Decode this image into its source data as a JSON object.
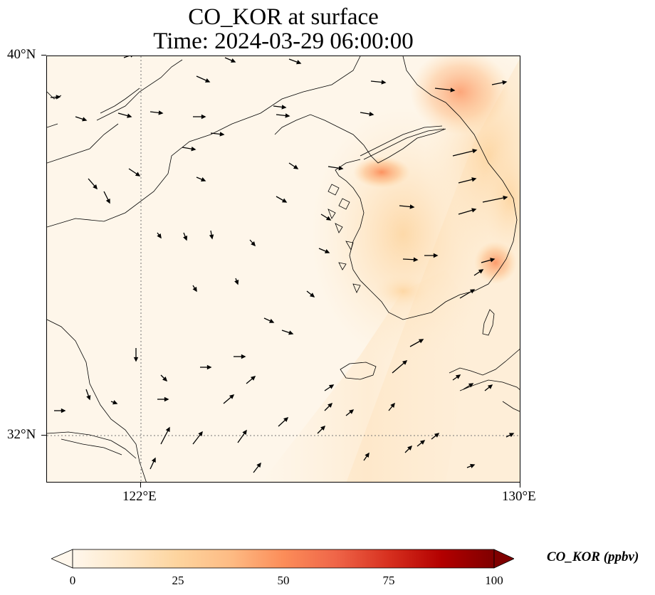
{
  "title": {
    "line1": "CO_KOR at surface",
    "line2": "Time: 2024-03-29 06:00:00"
  },
  "axes": {
    "lat_labels": [
      "40°N",
      "32°N"
    ],
    "lon_labels": [
      "122°E",
      "130°E"
    ],
    "lon_range": [
      120,
      130
    ],
    "lat_range": [
      31,
      40
    ]
  },
  "colorbar": {
    "label": "CO_KOR (ppbv)",
    "ticks": [
      "0",
      "25",
      "50",
      "75",
      "100"
    ],
    "range": [
      0,
      100
    ],
    "extend": "both",
    "colormap": "OrRd",
    "colors": [
      "#fff7ec",
      "#fee8c8",
      "#fdd49e",
      "#fdbb84",
      "#fc8d59",
      "#ef6548",
      "#d7301f",
      "#b30000",
      "#7f0000"
    ]
  },
  "map": {
    "field": "CO_KOR",
    "level": "surface",
    "features": [
      "Korean Peninsula",
      "Jeju Island",
      "Shandong Peninsula",
      "Liaodong Peninsula",
      "Yellow Sea"
    ],
    "gridlines": "dotted",
    "vectors": "wind arrows"
  }
}
